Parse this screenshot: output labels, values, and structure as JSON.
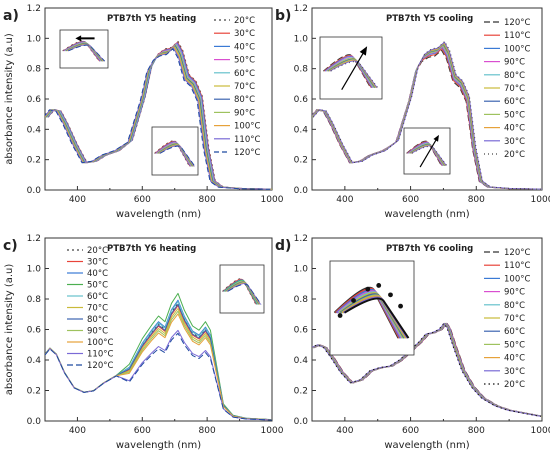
{
  "figure": {
    "ylabel": "absorbance intensity (a.u)",
    "xlabel": "wavelength (nm)"
  },
  "chart_data": [
    {
      "type": "line",
      "panel_letter": "a)",
      "title": "PTB7th Y5 heating",
      "xlabel": "wavelength (nm)",
      "ylabel": "absorbance intensity (a.u)",
      "xlim": [
        300,
        1000
      ],
      "ylim": [
        0,
        1.2
      ],
      "xticks": [
        "400",
        "600",
        "800",
        "1000"
      ],
      "yticks": [
        "0.0",
        "0.2",
        "0.4",
        "0.6",
        "0.8",
        "1.0",
        "1.2"
      ],
      "legend_position": "right",
      "insets": [
        "arrow-left",
        "plain"
      ],
      "shape": "y5",
      "series": [
        {
          "name": "20°C",
          "color": "#444444",
          "dash": "2,3",
          "shift": 10,
          "scale": 1.0
        },
        {
          "name": "30°C",
          "color": "#e8443a",
          "dash": "",
          "shift": 9,
          "scale": 0.995
        },
        {
          "name": "40°C",
          "color": "#3a7ad5",
          "dash": "",
          "shift": 8,
          "scale": 0.99
        },
        {
          "name": "50°C",
          "color": "#d94fd0",
          "dash": "",
          "shift": 6,
          "scale": 0.985
        },
        {
          "name": "60°C",
          "color": "#66c2cc",
          "dash": "",
          "shift": 5,
          "scale": 0.98
        },
        {
          "name": "70°C",
          "color": "#c9ba3a",
          "dash": "",
          "shift": 3,
          "scale": 0.975
        },
        {
          "name": "80°C",
          "color": "#3c64b0",
          "dash": "",
          "shift": 2,
          "scale": 0.97
        },
        {
          "name": "90°C",
          "color": "#9ec25e",
          "dash": "",
          "shift": 0,
          "scale": 0.965
        },
        {
          "name": "100°C",
          "color": "#e6a23a",
          "dash": "",
          "shift": -2,
          "scale": 0.96
        },
        {
          "name": "110°C",
          "color": "#7a6ad6",
          "dash": "",
          "shift": -4,
          "scale": 0.955
        },
        {
          "name": "120°C",
          "color": "#1f4aa0",
          "dash": "5,3",
          "shift": -6,
          "scale": 0.95
        }
      ]
    },
    {
      "type": "line",
      "panel_letter": "b)",
      "title": "PTB7th Y5 cooling",
      "xlabel": "wavelength (nm)",
      "ylabel": "",
      "xlim": [
        300,
        1000
      ],
      "ylim": [
        0,
        1.2
      ],
      "xticks": [
        "400",
        "600",
        "800",
        "1000"
      ],
      "yticks": [
        "0.0",
        "0.2",
        "0.4",
        "0.6",
        "0.8",
        "1.0",
        "1.2"
      ],
      "legend_position": "right",
      "insets": [
        "arrow-up",
        "arrow-up"
      ],
      "shape": "y5",
      "series": [
        {
          "name": "120°C",
          "color": "#333333",
          "dash": "6,3",
          "shift": -6,
          "scale": 0.94
        },
        {
          "name": "110°C",
          "color": "#e8443a",
          "dash": "",
          "shift": -5,
          "scale": 0.95
        },
        {
          "name": "100°C",
          "color": "#3a7ad5",
          "dash": "",
          "shift": -4,
          "scale": 0.96
        },
        {
          "name": "90°C",
          "color": "#d94fd0",
          "dash": "",
          "shift": -3,
          "scale": 0.965
        },
        {
          "name": "80°C",
          "color": "#66c2cc",
          "dash": "",
          "shift": -2,
          "scale": 0.97
        },
        {
          "name": "70°C",
          "color": "#c9ba3a",
          "dash": "",
          "shift": -1,
          "scale": 0.975
        },
        {
          "name": "60°C",
          "color": "#3c64b0",
          "dash": "",
          "shift": 0,
          "scale": 0.98
        },
        {
          "name": "50°C",
          "color": "#9ec25e",
          "dash": "",
          "shift": 1,
          "scale": 0.985
        },
        {
          "name": "40°C",
          "color": "#e6a23a",
          "dash": "",
          "shift": 2,
          "scale": 0.99
        },
        {
          "name": "30°C",
          "color": "#7a6ad6",
          "dash": "",
          "shift": 3,
          "scale": 0.995
        },
        {
          "name": "20°C",
          "color": "#444444",
          "dash": "1,3",
          "shift": 4,
          "scale": 1.0
        }
      ]
    },
    {
      "type": "line",
      "panel_letter": "c)",
      "title": "PTB7th Y6 heating",
      "xlabel": "wavelength (nm)",
      "ylabel": "absorbance intensity (a.u)",
      "xlim": [
        300,
        1000
      ],
      "ylim": [
        0,
        1.2
      ],
      "xticks": [
        "400",
        "600",
        "800",
        "1000"
      ],
      "yticks": [
        "0.0",
        "0.2",
        "0.4",
        "0.6",
        "0.8",
        "1.0",
        "1.2"
      ],
      "legend_position": "left",
      "insets": [
        "plain"
      ],
      "shape": "y6h",
      "series": [
        {
          "name": "20°C",
          "color": "#444444",
          "dash": "2,3",
          "shift": 0,
          "scale": 0.86
        },
        {
          "name": "30°C",
          "color": "#e8443a",
          "dash": "",
          "shift": 0,
          "scale": 0.84
        },
        {
          "name": "40°C",
          "color": "#3a7ad5",
          "dash": "",
          "shift": 0,
          "scale": 0.88
        },
        {
          "name": "50°C",
          "color": "#4caf50",
          "dash": "",
          "shift": 0,
          "scale": 0.93
        },
        {
          "name": "60°C",
          "color": "#66c2cc",
          "dash": "",
          "shift": 0,
          "scale": 0.87
        },
        {
          "name": "70°C",
          "color": "#c9ba3a",
          "dash": "",
          "shift": 0,
          "scale": 0.82
        },
        {
          "name": "80°C",
          "color": "#3c64b0",
          "dash": "",
          "shift": 0,
          "scale": 0.85
        },
        {
          "name": "90°C",
          "color": "#9ec25e",
          "dash": "",
          "shift": 0,
          "scale": 0.8
        },
        {
          "name": "100°C",
          "color": "#e6a23a",
          "dash": "",
          "shift": 0,
          "scale": 0.78
        },
        {
          "name": "110°C",
          "color": "#7a6ad6",
          "dash": "",
          "shift": 0,
          "scale": 0.66
        },
        {
          "name": "120°C",
          "color": "#1f4aa0",
          "dash": "6,3",
          "shift": 0,
          "scale": 0.64
        }
      ]
    },
    {
      "type": "line",
      "panel_letter": "d)",
      "title": "PTB7th Y6 cooling",
      "xlabel": "wavelength (nm)",
      "ylabel": "",
      "xlim": [
        300,
        1000
      ],
      "ylim": [
        0,
        1.2
      ],
      "xticks": [
        "400",
        "600",
        "800",
        "1000"
      ],
      "yticks": [
        "0.0",
        "0.2",
        "0.4",
        "0.6",
        "0.8",
        "1.0",
        "1.2"
      ],
      "legend_position": "right",
      "insets": [
        "dots"
      ],
      "shape": "y6c",
      "series": [
        {
          "name": "120°C",
          "color": "#333333",
          "dash": "6,3",
          "shift": 6,
          "scale": 1.0
        },
        {
          "name": "110°C",
          "color": "#e8443a",
          "dash": "",
          "shift": 5,
          "scale": 1.0
        },
        {
          "name": "100°C",
          "color": "#3a7ad5",
          "dash": "",
          "shift": 4,
          "scale": 1.0
        },
        {
          "name": "90°C",
          "color": "#d94fd0",
          "dash": "",
          "shift": 3,
          "scale": 1.0
        },
        {
          "name": "80°C",
          "color": "#66c2cc",
          "dash": "",
          "shift": 2,
          "scale": 1.0
        },
        {
          "name": "70°C",
          "color": "#c9ba3a",
          "dash": "",
          "shift": 1,
          "scale": 1.0
        },
        {
          "name": "60°C",
          "color": "#3c64b0",
          "dash": "",
          "shift": 0,
          "scale": 1.0
        },
        {
          "name": "50°C",
          "color": "#9ec25e",
          "dash": "",
          "shift": -1,
          "scale": 1.0
        },
        {
          "name": "40°C",
          "color": "#e6a23a",
          "dash": "",
          "shift": -2,
          "scale": 1.0
        },
        {
          "name": "30°C",
          "color": "#7a6ad6",
          "dash": "",
          "shift": -3,
          "scale": 1.0
        },
        {
          "name": "20°C",
          "color": "#111111",
          "dash": "1.5,3",
          "shift": -4,
          "scale": 1.0
        }
      ]
    }
  ]
}
